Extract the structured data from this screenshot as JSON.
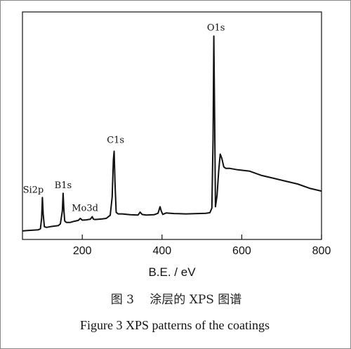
{
  "chart_data": {
    "type": "line",
    "xlabel": "B.E. / eV",
    "ylabel": "",
    "xlim": [
      50,
      800
    ],
    "xticks": [
      200,
      400,
      600,
      800
    ],
    "y_tick_labels_shown": false,
    "grid": false,
    "legend": "none",
    "series": [
      {
        "x": [
          50,
          60,
          70,
          80,
          90,
          95,
          98,
          100,
          102,
          105,
          110,
          120,
          130,
          140,
          145,
          150,
          152,
          154,
          156,
          160,
          170,
          180,
          190,
          195,
          200,
          210,
          220,
          225,
          228,
          232,
          240,
          250,
          260,
          270,
          275,
          278,
          280,
          282,
          285,
          290,
          300,
          320,
          340,
          345,
          350,
          360,
          380,
          390,
          395,
          398,
          402,
          410,
          430,
          460,
          490,
          510,
          520,
          525,
          528,
          530,
          532,
          534,
          538,
          542,
          546,
          550,
          555,
          560,
          570,
          590,
          620,
          650,
          680,
          710,
          740,
          770,
          800
        ],
        "y": [
          6.0,
          6.2,
          6.4,
          6.6,
          6.8,
          7.5,
          15.0,
          29.5,
          18.0,
          9.0,
          8.5,
          9.0,
          9.4,
          9.8,
          11.0,
          20.0,
          32.5,
          20.0,
          13.0,
          12.0,
          12.0,
          12.8,
          13.4,
          14.8,
          13.6,
          13.8,
          14.2,
          16.0,
          14.2,
          14.0,
          14.2,
          14.4,
          14.8,
          17.0,
          30.0,
          56.0,
          62.0,
          40.0,
          19.0,
          18.0,
          18.0,
          17.4,
          17.2,
          19.2,
          17.6,
          17.2,
          17.4,
          18.4,
          23.0,
          20.0,
          17.6,
          18.6,
          18.2,
          18.0,
          18.2,
          18.4,
          18.8,
          22.0,
          70.0,
          143.0,
          84.0,
          23.0,
          31.0,
          48.0,
          60.0,
          57.0,
          51.0,
          50.0,
          50.0,
          49.0,
          48.0,
          45.0,
          43.0,
          41.0,
          39.0,
          36.0,
          34.0
        ]
      }
    ],
    "annotations": [
      {
        "text": "Si2p",
        "x": 100
      },
      {
        "text": "B1s",
        "x": 152
      },
      {
        "text": "Mo3d",
        "x": 228
      },
      {
        "text": "C1s",
        "x": 280
      },
      {
        "text": "O1s",
        "x": 530
      }
    ]
  },
  "caption": {
    "chinese": "图 3　 涂层的 XPS 图谱",
    "english": "Figure 3 XPS patterns of the coatings"
  }
}
